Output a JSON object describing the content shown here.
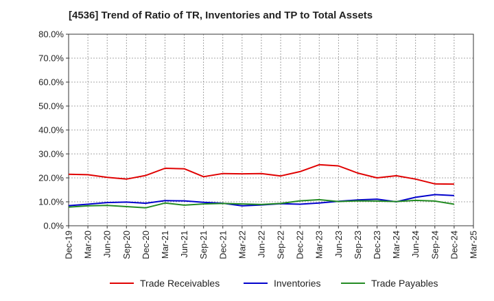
{
  "chart_data": {
    "type": "line",
    "title": "[4536]  Trend of Ratio of TR, Inventories and TP to Total Assets",
    "xlabel": "",
    "ylabel": "",
    "ylim": [
      0,
      80
    ],
    "y_ticks": [
      "0.0%",
      "10.0%",
      "20.0%",
      "30.0%",
      "40.0%",
      "50.0%",
      "60.0%",
      "70.0%",
      "80.0%"
    ],
    "x_tick_labels": [
      "Dec-19",
      "Mar-20",
      "Jun-20",
      "Sep-20",
      "Dec-20",
      "Mar-21",
      "Jun-21",
      "Sep-21",
      "Dec-21",
      "Mar-22",
      "Jun-22",
      "Sep-22",
      "Dec-22",
      "Mar-23",
      "Jun-23",
      "Sep-23",
      "Dec-23",
      "Mar-24",
      "Jun-24",
      "Sep-24",
      "Dec-24",
      "Mar-25"
    ],
    "categories": [
      "Dec-19",
      "Mar-20",
      "Jun-20",
      "Sep-20",
      "Dec-20",
      "Mar-21",
      "Jun-21",
      "Sep-21",
      "Dec-21",
      "Mar-22",
      "Jun-22",
      "Sep-22",
      "Dec-22",
      "Mar-23",
      "Jun-23",
      "Sep-23",
      "Dec-23",
      "Mar-24",
      "Jun-24",
      "Sep-24",
      "Dec-24"
    ],
    "grid": true,
    "legend_position": "bottom",
    "series": [
      {
        "name": "Trade Receivables",
        "color": "#e00000",
        "values": [
          21.5,
          21.3,
          20.2,
          19.5,
          21.0,
          24.0,
          23.8,
          20.5,
          21.8,
          21.7,
          21.8,
          20.8,
          22.6,
          25.5,
          25.0,
          22.0,
          20.0,
          20.9,
          19.5,
          17.5,
          17.4
        ]
      },
      {
        "name": "Inventories",
        "color": "#0000cc",
        "values": [
          8.4,
          9.0,
          9.7,
          9.9,
          9.4,
          10.5,
          10.4,
          9.8,
          9.4,
          8.3,
          8.7,
          9.2,
          9.0,
          9.5,
          10.2,
          10.8,
          11.1,
          10.0,
          11.9,
          13.0,
          12.6
        ]
      },
      {
        "name": "Trade Payables",
        "color": "#228b22",
        "values": [
          7.8,
          8.3,
          8.5,
          8.0,
          7.5,
          9.5,
          8.6,
          9.1,
          9.3,
          9.1,
          8.9,
          9.3,
          10.4,
          10.9,
          10.1,
          10.4,
          10.3,
          10.1,
          10.6,
          10.3,
          9.0
        ]
      }
    ]
  }
}
